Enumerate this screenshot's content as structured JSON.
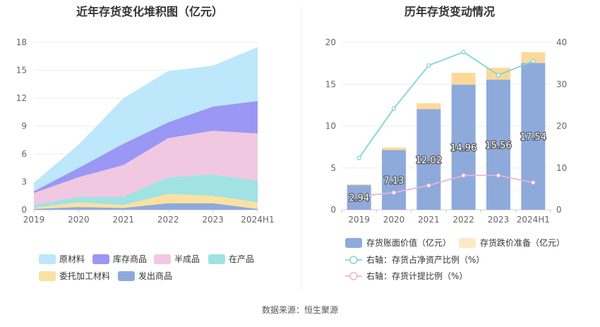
{
  "source": "数据来源：恒生聚源",
  "chart_data": [
    {
      "type": "area",
      "stacked": true,
      "title": "近年存货变化堆积图（亿元）",
      "categories": [
        "2019",
        "2020",
        "2021",
        "2022",
        "2023",
        "2024H1"
      ],
      "y_ticks": [
        0,
        3,
        6,
        9,
        12,
        15,
        18
      ],
      "ylim": [
        0,
        18
      ],
      "grid": true,
      "legend_position": "bottom",
      "series": [
        {
          "name": "发出商品",
          "color": "#8eaadb",
          "values": [
            0.1,
            0.3,
            0.2,
            0.7,
            0.7,
            0.1
          ]
        },
        {
          "name": "委托加工材料",
          "color": "#fde1a0",
          "values": [
            0.1,
            0.5,
            0.3,
            1.0,
            0.8,
            0.7
          ]
        },
        {
          "name": "在产品",
          "color": "#a0e3e2",
          "values": [
            0.3,
            0.6,
            0.9,
            1.8,
            2.3,
            2.3
          ]
        },
        {
          "name": "半成品",
          "color": "#f0c8e2",
          "values": [
            1.3,
            2.1,
            3.4,
            4.2,
            4.7,
            5.1
          ]
        },
        {
          "name": "库存商品",
          "color": "#9b97f4",
          "values": [
            0.2,
            1.0,
            2.3,
            1.7,
            2.6,
            3.5
          ]
        },
        {
          "name": "原材料",
          "color": "#bde7fb",
          "values": [
            0.9,
            2.5,
            4.9,
            5.5,
            4.4,
            5.8
          ]
        }
      ],
      "legend_order": [
        "原材料",
        "库存商品",
        "半成品",
        "在产品",
        "委托加工材料",
        "发出商品"
      ]
    },
    {
      "type": "bar+line",
      "title": "历年存货变动情况",
      "categories": [
        "2019",
        "2020",
        "2021",
        "2022",
        "2023",
        "2024H1"
      ],
      "left_axis": {
        "ticks": [
          0,
          5,
          10,
          15,
          20
        ],
        "ylim": [
          0,
          20
        ]
      },
      "right_axis": {
        "ticks": [
          0,
          10,
          20,
          30,
          40
        ],
        "ylim": [
          0,
          40
        ]
      },
      "bars": [
        {
          "name": "存货账面价值（亿元）",
          "color": "#8eaadb",
          "values": [
            2.94,
            7.13,
            12.02,
            14.96,
            15.56,
            17.54
          ],
          "labels": [
            "2.94",
            "7.13",
            "12.02",
            "14.96",
            "15.56",
            "17.54"
          ]
        },
        {
          "name": "存货跌价准备（亿元）",
          "color": "#fdd999",
          "values": [
            0.1,
            0.3,
            0.7,
            1.4,
            1.4,
            1.3
          ]
        }
      ],
      "lines": [
        {
          "name": "右轴：存货占净资产比例（%）",
          "color": "#7fd6d6",
          "values": [
            12.4,
            24.2,
            34.5,
            37.7,
            32.2,
            35.5
          ]
        },
        {
          "name": "右轴：存货计提比例（%）",
          "color": "#e7b4da",
          "values": [
            3.2,
            4.1,
            5.8,
            8.2,
            8.2,
            6.5
          ]
        }
      ]
    }
  ]
}
